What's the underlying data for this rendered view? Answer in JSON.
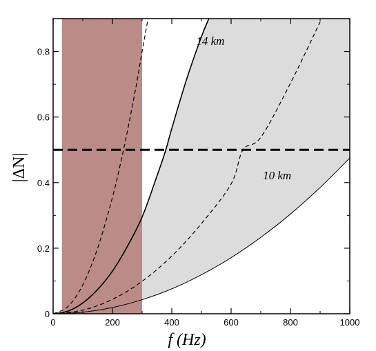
{
  "chart_data": {
    "type": "line",
    "title": "",
    "xlabel": "f (Hz)",
    "ylabel": "|ΔN|",
    "xlim": [
      0,
      1000
    ],
    "ylim": [
      0,
      0.9
    ],
    "xticks": [
      0,
      200,
      400,
      600,
      800,
      1000
    ],
    "xtick_labels": [
      "0",
      "200",
      "400",
      "600",
      "800",
      "1000"
    ],
    "yticks": [
      0,
      0.2,
      0.4,
      0.6,
      0.8
    ],
    "ytick_labels": [
      "0",
      "0.2",
      "0.4",
      "0.6",
      "0.8"
    ],
    "grid": false,
    "shaded_band": {
      "x_from": 30,
      "x_to": 300,
      "color": "#bb8b87"
    },
    "filled_region": {
      "between": [
        "upper_solid",
        "lower_solid"
      ],
      "color": "#dcdcdc"
    },
    "series": [
      {
        "id": "upper_solid",
        "style": "solid",
        "width": 1.6,
        "x": [
          0,
          50,
          100,
          150,
          200,
          250,
          300,
          350,
          380,
          400,
          450,
          500,
          525
        ],
        "y": [
          0,
          0.008,
          0.033,
          0.074,
          0.13,
          0.205,
          0.295,
          0.42,
          0.5,
          0.565,
          0.715,
          0.845,
          0.9
        ]
      },
      {
        "id": "lower_solid",
        "style": "solid",
        "width": 1.0,
        "x": [
          0,
          100,
          200,
          300,
          400,
          500,
          600,
          700,
          800,
          900,
          1000
        ],
        "y": [
          0,
          0.0048,
          0.019,
          0.043,
          0.076,
          0.119,
          0.171,
          0.233,
          0.304,
          0.385,
          0.475
        ]
      },
      {
        "id": "inner_dashed",
        "style": "dashed",
        "width": 1.2,
        "x": [
          0,
          50,
          100,
          150,
          200,
          230,
          250,
          280,
          300,
          320
        ],
        "y": [
          0,
          0.022,
          0.088,
          0.2,
          0.355,
          0.47,
          0.555,
          0.695,
          0.8,
          0.9
        ]
      },
      {
        "id": "outer_dashed",
        "style": "dashed",
        "width": 1.2,
        "x": [
          0,
          100,
          200,
          300,
          400,
          500,
          600,
          640,
          700,
          800,
          900
        ],
        "y": [
          0,
          0.011,
          0.044,
          0.099,
          0.176,
          0.275,
          0.396,
          0.5,
          0.538,
          0.703,
          0.89
        ]
      },
      {
        "id": "threshold",
        "style": "long-dashed",
        "width": 3,
        "x": [
          0,
          1000
        ],
        "y": [
          0.5,
          0.5
        ]
      }
    ],
    "annotations": [
      {
        "text": "14 km",
        "x": 530,
        "y": 0.82
      },
      {
        "text": "10 km",
        "x": 755,
        "y": 0.41
      }
    ]
  }
}
